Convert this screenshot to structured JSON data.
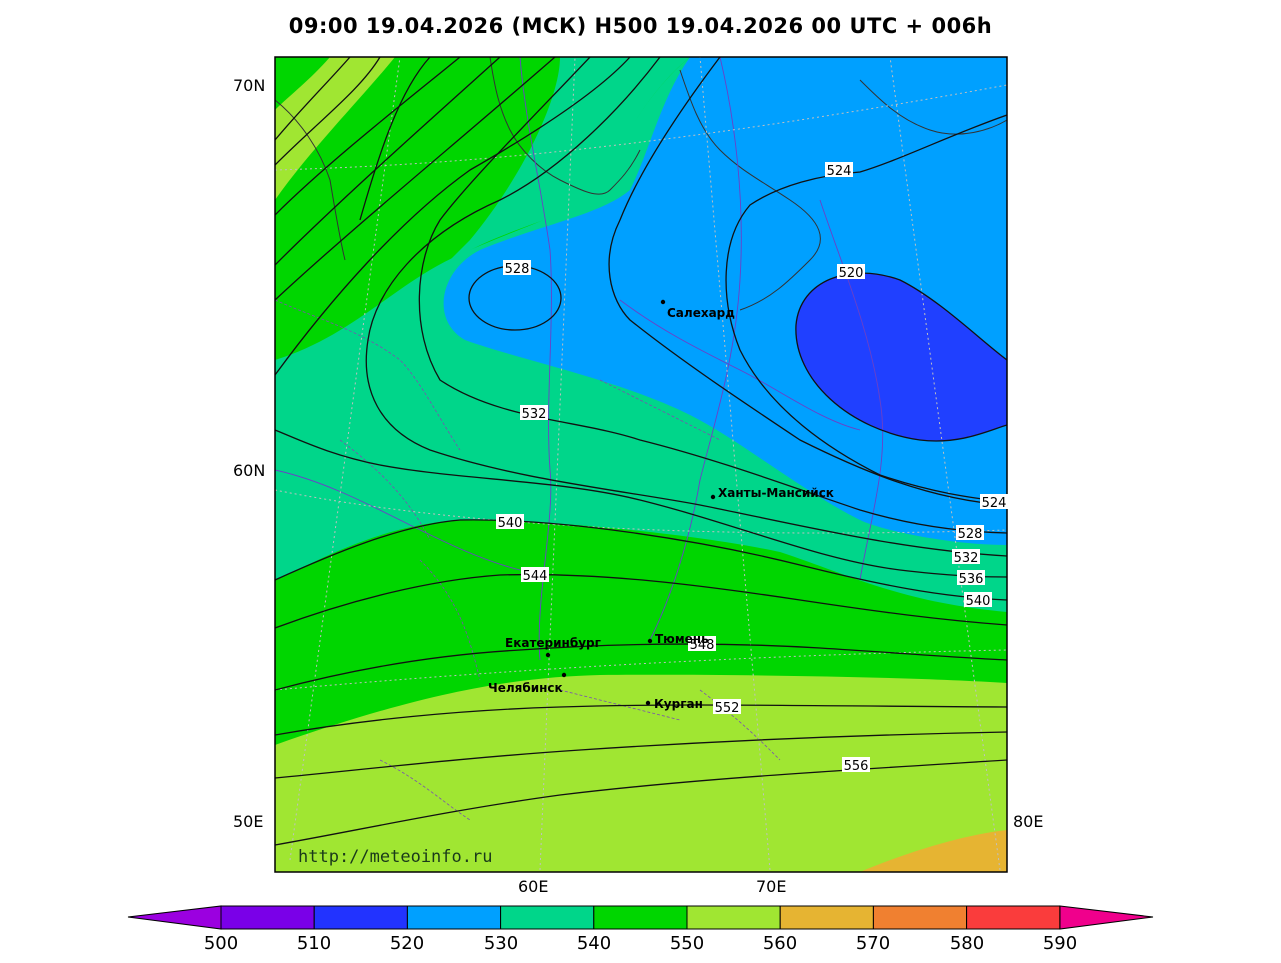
{
  "title": "09:00 19.04.2026 (МСК) H500  19.04.2026 00 UTC + 006h",
  "watermark": "http://meteoinfo.ru",
  "axes": {
    "lat_labels": [
      "70N",
      "60N"
    ],
    "lon_labels_left": "50E",
    "lon_labels_right": "80E",
    "lon_labels_bottom": [
      "60E",
      "70E"
    ]
  },
  "cities": [
    {
      "name": "Салехард"
    },
    {
      "name": "Ханты-Мансийск"
    },
    {
      "name": "Екатеринбург"
    },
    {
      "name": "Тюмень"
    },
    {
      "name": "Челябинск"
    },
    {
      "name": "Курган"
    }
  ],
  "contour_labels": [
    "528",
    "524",
    "520",
    "532",
    "540",
    "544",
    "548",
    "552",
    "556",
    "524",
    "528",
    "532",
    "536",
    "540"
  ],
  "colorbar": {
    "ticks": [
      "500",
      "510",
      "520",
      "530",
      "540",
      "550",
      "560",
      "570",
      "580",
      "590"
    ],
    "colors": [
      "#9b00e0",
      "#7a00e8",
      "#2233ff",
      "#00a0ff",
      "#00d68a",
      "#00d600",
      "#a0e632",
      "#e6b432",
      "#f08030",
      "#fa3c3c",
      "#f0008c"
    ]
  },
  "fill_colors": {
    "c520": "#2040ff",
    "c530": "#00a0ff",
    "c540": "#00d68a",
    "c550": "#00d600",
    "c560": "#a0e632",
    "c570": "#e6b432"
  }
}
